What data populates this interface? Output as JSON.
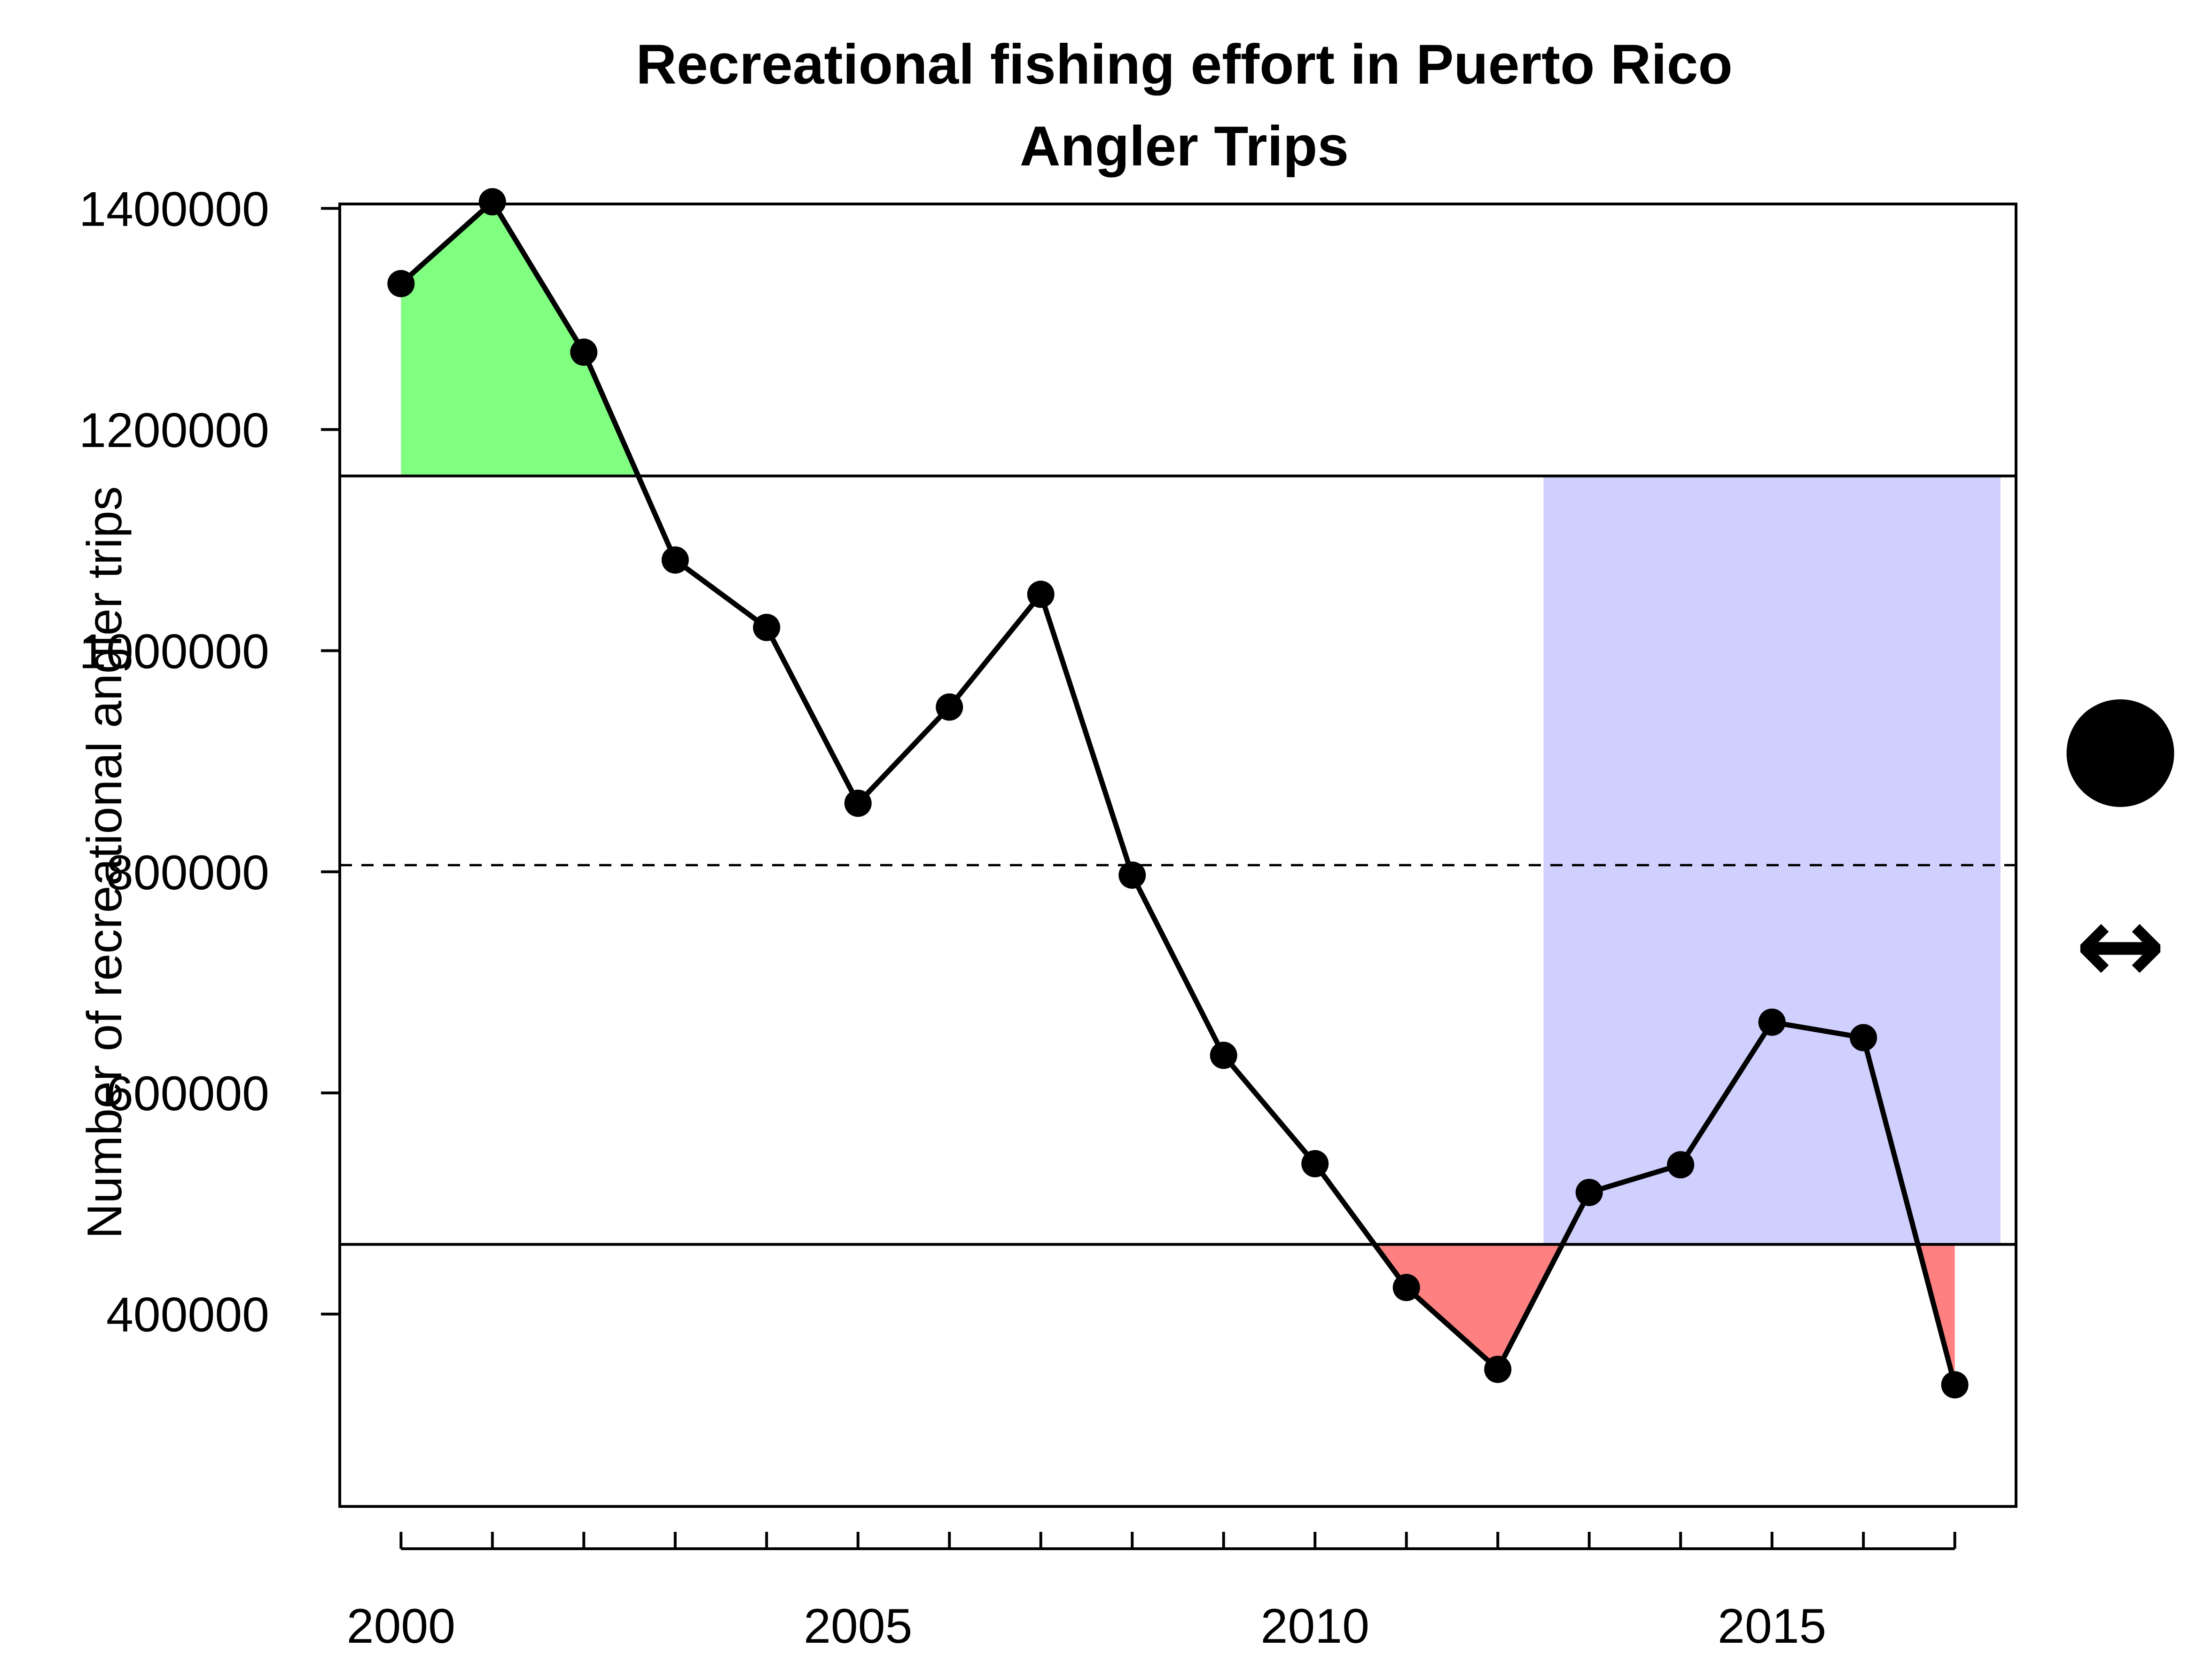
{
  "chart_data": {
    "type": "line",
    "title": "Recreational fishing effort in Puerto Rico",
    "subtitle": "Angler Trips",
    "ylabel": "Number of recreational angler trips",
    "xlabel": "",
    "xlim": [
      1999.33,
      2017.67
    ],
    "ylim": [
      226000,
      1404000
    ],
    "x_ticks": [
      2000,
      2005,
      2010,
      2015
    ],
    "x_minor_ticks": [
      2000,
      2001,
      2002,
      2003,
      2004,
      2005,
      2006,
      2007,
      2008,
      2009,
      2010,
      2011,
      2012,
      2013,
      2014,
      2015,
      2016,
      2017
    ],
    "y_ticks": [
      400000,
      600000,
      800000,
      1000000,
      1200000,
      1400000
    ],
    "y_tick_labels": [
      "400000",
      "600000",
      "800000",
      "1000000",
      "1200000",
      "1400000"
    ],
    "x": [
      2000,
      2001,
      2002,
      2003,
      2004,
      2005,
      2006,
      2007,
      2008,
      2009,
      2010,
      2011,
      2012,
      2013,
      2014,
      2015,
      2016,
      2017
    ],
    "series": [
      {
        "values": [
          1332000,
          1406000,
          1270000,
          1082000,
          1021000,
          862000,
          949000,
          1051000,
          797000,
          634000,
          536000,
          424000,
          350000,
          510000,
          535000,
          664000,
          650000,
          336000
        ]
      }
    ],
    "upper_reference": 1158000,
    "lower_reference": 463000,
    "mean_reference": 806000,
    "recent_period": [
      2012.5,
      2017.5
    ],
    "trend_indicators": {
      "mean_status_symbol": "●",
      "trend_symbol": "↔"
    },
    "colors": {
      "above_upper_fill": "#80ff80",
      "below_lower_fill": "#ff8080",
      "recent_period_fill": "#d0d0ff",
      "line": "#000000"
    }
  }
}
